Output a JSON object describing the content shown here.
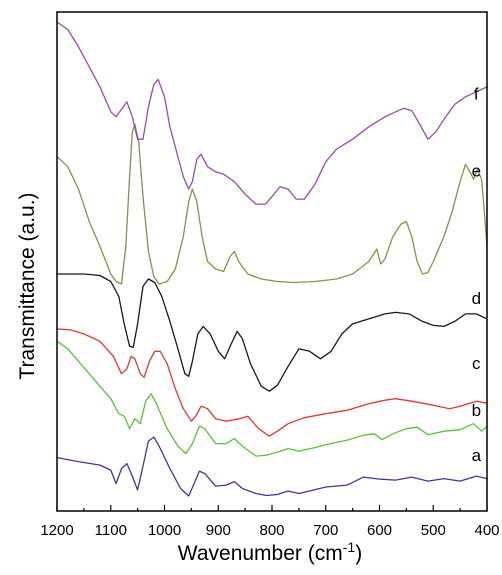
{
  "chart_data": {
    "type": "line",
    "xlabel": "Wavenumber (cm",
    "xlabel_sup": "-1",
    "xlabel_suffix": ")",
    "ylabel": "Transmittance (a.u.)",
    "xlim": [
      1200,
      400
    ],
    "x_reversed": true,
    "ylim": [
      0,
      100
    ],
    "x_ticks": [
      1200,
      1100,
      1000,
      900,
      800,
      700,
      600,
      500,
      400
    ],
    "y_ticks_labeled": false,
    "grid": false,
    "legend": "none",
    "series": [
      {
        "name": "a",
        "color": "#3a3a9e",
        "label_at": [
          420,
          10
        ],
        "points": [
          [
            1200,
            10.7
          ],
          [
            1160,
            9.9
          ],
          [
            1120,
            9.2
          ],
          [
            1100,
            8.2
          ],
          [
            1090,
            5.5
          ],
          [
            1080,
            8.5
          ],
          [
            1070,
            9.5
          ],
          [
            1060,
            7.0
          ],
          [
            1050,
            4.2
          ],
          [
            1042,
            8.0
          ],
          [
            1030,
            14.0
          ],
          [
            1020,
            14.8
          ],
          [
            1010,
            13.0
          ],
          [
            990,
            8.5
          ],
          [
            970,
            4.5
          ],
          [
            955,
            3.0
          ],
          [
            945,
            5.5
          ],
          [
            935,
            8.0
          ],
          [
            925,
            7.5
          ],
          [
            905,
            5.0
          ],
          [
            885,
            5.2
          ],
          [
            870,
            5.9
          ],
          [
            855,
            4.5
          ],
          [
            830,
            3.5
          ],
          [
            810,
            3.1
          ],
          [
            790,
            3.3
          ],
          [
            770,
            4.0
          ],
          [
            750,
            3.5
          ],
          [
            730,
            4.0
          ],
          [
            700,
            4.8
          ],
          [
            660,
            5.2
          ],
          [
            630,
            6.8
          ],
          [
            600,
            6.4
          ],
          [
            570,
            6.2
          ],
          [
            540,
            6.8
          ],
          [
            510,
            6.0
          ],
          [
            480,
            6.5
          ],
          [
            450,
            6.0
          ],
          [
            420,
            7.0
          ],
          [
            400,
            6.5
          ]
        ]
      },
      {
        "name": "b",
        "color": "#5ac23a",
        "label_at": [
          420,
          19
        ],
        "points": [
          [
            1200,
            34.0
          ],
          [
            1180,
            32.5
          ],
          [
            1160,
            30.0
          ],
          [
            1140,
            27.5
          ],
          [
            1120,
            25.0
          ],
          [
            1100,
            22.5
          ],
          [
            1085,
            19.5
          ],
          [
            1075,
            19.0
          ],
          [
            1065,
            16.5
          ],
          [
            1055,
            18.5
          ],
          [
            1045,
            17.5
          ],
          [
            1035,
            22.0
          ],
          [
            1025,
            23.5
          ],
          [
            1015,
            21.5
          ],
          [
            995,
            16.5
          ],
          [
            975,
            13.0
          ],
          [
            960,
            11.5
          ],
          [
            948,
            13.5
          ],
          [
            935,
            17.0
          ],
          [
            925,
            16.5
          ],
          [
            905,
            13.5
          ],
          [
            885,
            13.5
          ],
          [
            870,
            14.5
          ],
          [
            855,
            13.0
          ],
          [
            830,
            11.0
          ],
          [
            810,
            11.2
          ],
          [
            790,
            11.8
          ],
          [
            770,
            12.5
          ],
          [
            750,
            12.0
          ],
          [
            720,
            12.7
          ],
          [
            700,
            13.3
          ],
          [
            660,
            14.2
          ],
          [
            630,
            15.2
          ],
          [
            610,
            15.5
          ],
          [
            595,
            14.3
          ],
          [
            575,
            15.5
          ],
          [
            550,
            16.5
          ],
          [
            530,
            16.8
          ],
          [
            510,
            15.3
          ],
          [
            480,
            16.0
          ],
          [
            450,
            16.3
          ],
          [
            425,
            17.5
          ],
          [
            410,
            16.0
          ],
          [
            400,
            17.0
          ]
        ]
      },
      {
        "name": "c",
        "color": "#e03a2a",
        "label_at": [
          420,
          28.5
        ],
        "points": [
          [
            1200,
            36.5
          ],
          [
            1175,
            36.3
          ],
          [
            1150,
            35.5
          ],
          [
            1120,
            34.0
          ],
          [
            1095,
            31.0
          ],
          [
            1080,
            27.5
          ],
          [
            1070,
            28.5
          ],
          [
            1062,
            31.0
          ],
          [
            1055,
            30.5
          ],
          [
            1045,
            27.5
          ],
          [
            1038,
            26.8
          ],
          [
            1028,
            30.0
          ],
          [
            1018,
            32.0
          ],
          [
            1008,
            32.0
          ],
          [
            995,
            29.5
          ],
          [
            980,
            24.5
          ],
          [
            965,
            20.5
          ],
          [
            950,
            18.0
          ],
          [
            942,
            19.0
          ],
          [
            932,
            21.0
          ],
          [
            920,
            20.5
          ],
          [
            905,
            18.5
          ],
          [
            885,
            18.0
          ],
          [
            860,
            18.5
          ],
          [
            845,
            19.0
          ],
          [
            825,
            16.5
          ],
          [
            805,
            15.0
          ],
          [
            790,
            16.0
          ],
          [
            770,
            17.5
          ],
          [
            740,
            18.7
          ],
          [
            700,
            19.5
          ],
          [
            660,
            20.2
          ],
          [
            620,
            21.5
          ],
          [
            590,
            22.2
          ],
          [
            570,
            22.5
          ],
          [
            540,
            22.0
          ],
          [
            500,
            21.2
          ],
          [
            470,
            20.5
          ],
          [
            450,
            21.0
          ],
          [
            420,
            22.0
          ],
          [
            400,
            21.6
          ]
        ]
      },
      {
        "name": "d",
        "color": "#1a1a1a",
        "label_at": [
          420,
          41.5
        ],
        "points": [
          [
            1200,
            47.5
          ],
          [
            1150,
            47.5
          ],
          [
            1120,
            47.2
          ],
          [
            1100,
            46.0
          ],
          [
            1085,
            43.0
          ],
          [
            1075,
            37.5
          ],
          [
            1065,
            33.0
          ],
          [
            1058,
            32.8
          ],
          [
            1050,
            37.5
          ],
          [
            1040,
            45.0
          ],
          [
            1030,
            46.5
          ],
          [
            1018,
            45.8
          ],
          [
            1005,
            43.0
          ],
          [
            990,
            38.0
          ],
          [
            975,
            32.5
          ],
          [
            962,
            27.5
          ],
          [
            955,
            27.0
          ],
          [
            948,
            30.0
          ],
          [
            938,
            35.5
          ],
          [
            928,
            37.0
          ],
          [
            915,
            35.5
          ],
          [
            900,
            32.0
          ],
          [
            888,
            30.5
          ],
          [
            878,
            33.0
          ],
          [
            865,
            36.0
          ],
          [
            855,
            34.5
          ],
          [
            840,
            29.5
          ],
          [
            820,
            25.0
          ],
          [
            805,
            24.0
          ],
          [
            790,
            25.2
          ],
          [
            770,
            29.0
          ],
          [
            750,
            32.5
          ],
          [
            730,
            32.0
          ],
          [
            710,
            30.5
          ],
          [
            690,
            32.0
          ],
          [
            670,
            35.5
          ],
          [
            650,
            37.5
          ],
          [
            620,
            38.5
          ],
          [
            590,
            39.5
          ],
          [
            570,
            39.8
          ],
          [
            545,
            39.5
          ],
          [
            520,
            38.0
          ],
          [
            500,
            37.2
          ],
          [
            480,
            37.0
          ],
          [
            460,
            38.0
          ],
          [
            440,
            39.5
          ],
          [
            420,
            39.5
          ],
          [
            400,
            38.5
          ]
        ]
      },
      {
        "name": "e",
        "color": "#8e8e48",
        "label_at": [
          420,
          67
        ],
        "points": [
          [
            1200,
            71.0
          ],
          [
            1180,
            69.0
          ],
          [
            1160,
            64.5
          ],
          [
            1140,
            58.0
          ],
          [
            1120,
            53.0
          ],
          [
            1100,
            47.5
          ],
          [
            1090,
            46.0
          ],
          [
            1080,
            45.5
          ],
          [
            1072,
            53.0
          ],
          [
            1065,
            67.0
          ],
          [
            1060,
            76.0
          ],
          [
            1055,
            77.5
          ],
          [
            1048,
            74.0
          ],
          [
            1040,
            63.0
          ],
          [
            1030,
            52.0
          ],
          [
            1020,
            47.0
          ],
          [
            1010,
            45.5
          ],
          [
            995,
            46.0
          ],
          [
            980,
            48.5
          ],
          [
            965,
            55.0
          ],
          [
            955,
            62.0
          ],
          [
            948,
            64.5
          ],
          [
            940,
            62.0
          ],
          [
            930,
            55.0
          ],
          [
            920,
            50.0
          ],
          [
            905,
            48.5
          ],
          [
            890,
            48.0
          ],
          [
            878,
            51.0
          ],
          [
            870,
            52.0
          ],
          [
            862,
            50.0
          ],
          [
            845,
            47.5
          ],
          [
            820,
            46.5
          ],
          [
            790,
            46.0
          ],
          [
            760,
            45.8
          ],
          [
            720,
            46.0
          ],
          [
            680,
            46.5
          ],
          [
            650,
            47.5
          ],
          [
            620,
            50.0
          ],
          [
            605,
            52.5
          ],
          [
            598,
            49.5
          ],
          [
            590,
            50.5
          ],
          [
            575,
            55.0
          ],
          [
            560,
            57.5
          ],
          [
            550,
            58.0
          ],
          [
            540,
            55.0
          ],
          [
            530,
            50.0
          ],
          [
            520,
            47.5
          ],
          [
            510,
            47.8
          ],
          [
            500,
            50.0
          ],
          [
            490,
            52.5
          ],
          [
            480,
            55.0
          ],
          [
            465,
            60.0
          ],
          [
            450,
            66.0
          ],
          [
            440,
            69.5
          ],
          [
            432,
            68.0
          ],
          [
            425,
            66.5
          ],
          [
            418,
            68.5
          ],
          [
            410,
            66.5
          ],
          [
            405,
            60.0
          ],
          [
            400,
            53.0
          ]
        ]
      },
      {
        "name": "f",
        "color": "#9b4aad",
        "label_at": [
          420,
          82.5
        ],
        "points": [
          [
            1200,
            98.0
          ],
          [
            1180,
            96.5
          ],
          [
            1160,
            93.0
          ],
          [
            1140,
            89.0
          ],
          [
            1120,
            85.0
          ],
          [
            1100,
            80.0
          ],
          [
            1090,
            79.0
          ],
          [
            1080,
            80.5
          ],
          [
            1070,
            82.0
          ],
          [
            1060,
            79.0
          ],
          [
            1050,
            74.5
          ],
          [
            1040,
            74.5
          ],
          [
            1030,
            81.0
          ],
          [
            1020,
            85.5
          ],
          [
            1012,
            86.5
          ],
          [
            1000,
            83.0
          ],
          [
            990,
            77.0
          ],
          [
            975,
            71.0
          ],
          [
            965,
            67.0
          ],
          [
            955,
            64.5
          ],
          [
            948,
            66.0
          ],
          [
            940,
            70.5
          ],
          [
            932,
            71.5
          ],
          [
            920,
            69.0
          ],
          [
            905,
            68.0
          ],
          [
            890,
            67.5
          ],
          [
            870,
            66.0
          ],
          [
            850,
            63.5
          ],
          [
            830,
            61.5
          ],
          [
            812,
            61.5
          ],
          [
            800,
            63.0
          ],
          [
            785,
            65.0
          ],
          [
            770,
            64.5
          ],
          [
            755,
            62.5
          ],
          [
            740,
            62.5
          ],
          [
            720,
            65.5
          ],
          [
            700,
            70.0
          ],
          [
            680,
            72.5
          ],
          [
            650,
            74.5
          ],
          [
            620,
            77.0
          ],
          [
            590,
            79.0
          ],
          [
            570,
            80.0
          ],
          [
            555,
            80.7
          ],
          [
            540,
            80.2
          ],
          [
            525,
            77.5
          ],
          [
            510,
            74.5
          ],
          [
            495,
            76.0
          ],
          [
            480,
            78.5
          ],
          [
            460,
            81.5
          ],
          [
            440,
            83.0
          ],
          [
            420,
            84.0
          ],
          [
            400,
            85.0
          ]
        ]
      }
    ]
  }
}
